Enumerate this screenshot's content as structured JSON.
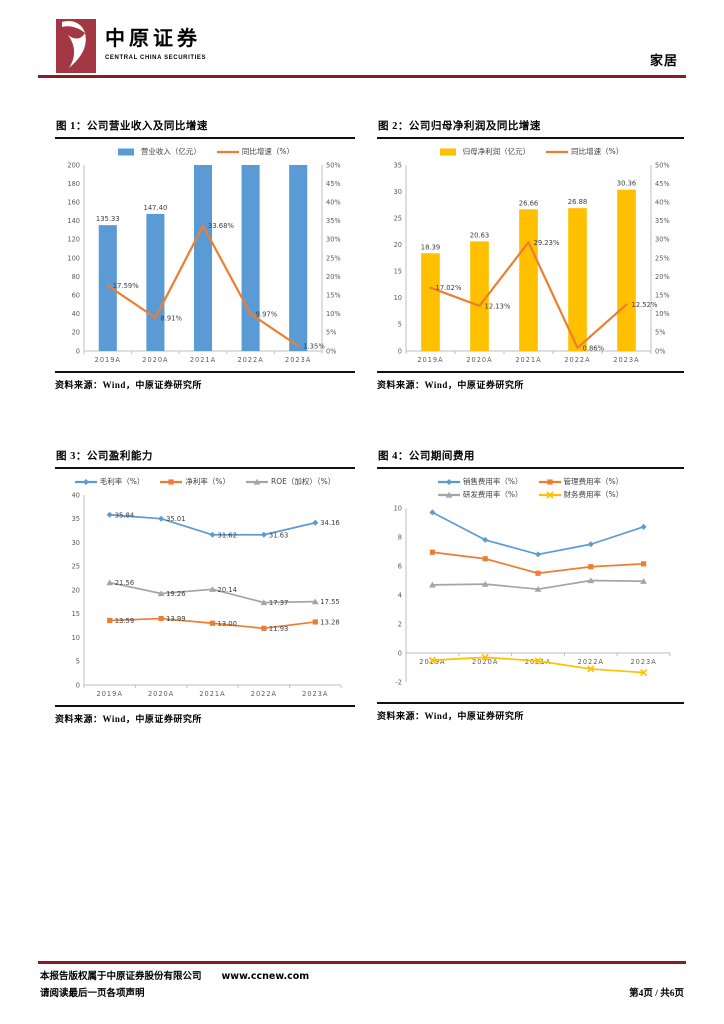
{
  "header": {
    "brand_cn": "中原证券",
    "brand_en": "CENTRAL CHINA SECURITIES",
    "sector_tag": "家居"
  },
  "footer": {
    "copyright": "本报告版权属于中原证券股份有限公司",
    "website": "www.ccnew.com",
    "disclaimer": "请阅读最后一页各项声明",
    "page_info": "第4页 / 共6页"
  },
  "colors": {
    "brand_red": "#A43744",
    "rule_red": "#8B1B21",
    "bar_blue": "#5B9BD5",
    "series_orange": "#ED7D31",
    "bar_gold": "#FFC000",
    "series_gray": "#A5A5A5",
    "series_yellow": "#FFC000"
  },
  "chart_data": [
    {
      "type": "bar",
      "title": "图 1：公司营业收入及同比增速",
      "source": "资料来源：Wind，中原证券研究所",
      "categories": [
        "2019A",
        "2020A",
        "2021A",
        "2022A",
        "2023A"
      ],
      "left_axis": {
        "min": 0,
        "max": 200,
        "step": 20
      },
      "right_axis": {
        "min": 0,
        "max": 50,
        "step": 5,
        "suffix": "%"
      },
      "series": [
        {
          "name": "营业收入（亿元）",
          "type": "bar",
          "axis": "left",
          "color": "#5B9BD5",
          "values": [
            135.33,
            147.4,
            200,
            200,
            200
          ],
          "labels": [
            "135.33",
            "147.40",
            "",
            "",
            ""
          ]
        },
        {
          "name": "同比增速（%）",
          "type": "line",
          "axis": "right",
          "color": "#ED7D31",
          "width": 2.2,
          "values": [
            17.59,
            8.91,
            33.68,
            9.97,
            1.35
          ],
          "labels": [
            "17.59%",
            "8.91%",
            "33.68%",
            "9.97%",
            "1.35%"
          ]
        }
      ]
    },
    {
      "type": "bar",
      "title": "图 2：公司归母净利润及同比增速",
      "source": "资料来源：Wind，中原证券研究所",
      "categories": [
        "2019A",
        "2020A",
        "2021A",
        "2022A",
        "2023A"
      ],
      "left_axis": {
        "min": 0,
        "max": 35,
        "step": 5
      },
      "right_axis": {
        "min": 0,
        "max": 50,
        "step": 5,
        "suffix": "%"
      },
      "series": [
        {
          "name": "归母净利润（亿元）",
          "type": "bar",
          "axis": "left",
          "color": "#FFC000",
          "values": [
            18.39,
            20.63,
            26.66,
            26.88,
            30.36
          ],
          "labels": [
            "18.39",
            "20.63",
            "26.66",
            "26.88",
            "30.36"
          ]
        },
        {
          "name": "同比增速（%）",
          "type": "line",
          "axis": "right",
          "color": "#ED7D31",
          "width": 2.2,
          "values": [
            17.02,
            12.13,
            29.23,
            0.86,
            12.52
          ],
          "labels": [
            "17.02%",
            "12.13%",
            "29.23%",
            "0.86%",
            "12.52%"
          ]
        }
      ]
    },
    {
      "type": "line",
      "title": "图 3：公司盈利能力",
      "source": "资料来源：Wind，中原证券研究所",
      "categories": [
        "2019A",
        "2020A",
        "2021A",
        "2022A",
        "2023A"
      ],
      "left_axis": {
        "min": 0,
        "max": 40,
        "step": 5
      },
      "series": [
        {
          "name": "毛利率（%）",
          "type": "line",
          "axis": "left",
          "color": "#5B9BD5",
          "marker": "diamond",
          "width": 1.7,
          "values": [
            35.84,
            35.01,
            31.62,
            31.63,
            34.16
          ],
          "labels": [
            "35.84",
            "35.01",
            "31.62",
            "31.63",
            "34.16"
          ]
        },
        {
          "name": "净利率（%）",
          "type": "line",
          "axis": "left",
          "color": "#ED7D31",
          "marker": "square",
          "width": 1.7,
          "values": [
            13.59,
            13.99,
            13.0,
            11.93,
            13.28
          ],
          "labels": [
            "13.59",
            "13.99",
            "13.00",
            "11.93",
            "13.28"
          ]
        },
        {
          "name": "ROE（加权）（%）",
          "type": "line",
          "axis": "left",
          "color": "#A5A5A5",
          "marker": "triangle",
          "width": 1.7,
          "values": [
            21.56,
            19.26,
            20.14,
            17.37,
            17.55
          ],
          "labels": [
            "21.56",
            "19.26",
            "20.14",
            "17.37",
            "17.55"
          ]
        }
      ]
    },
    {
      "type": "line",
      "title": "图 4：公司期间费用",
      "source": "资料来源：Wind，中原证券研究所",
      "categories": [
        "2019A",
        "2020A",
        "2021A",
        "2022A",
        "2023A"
      ],
      "left_axis": {
        "min": -2,
        "max": 10,
        "step": 2
      },
      "legend_rows": [
        [
          0,
          1
        ],
        [
          2,
          3
        ]
      ],
      "series": [
        {
          "name": "销售费用率（%）",
          "type": "line",
          "axis": "left",
          "color": "#5B9BD5",
          "marker": "diamond",
          "width": 1.7,
          "values": [
            9.7,
            7.8,
            6.8,
            7.5,
            8.7
          ]
        },
        {
          "name": "管理费用率（%）",
          "type": "line",
          "axis": "left",
          "color": "#ED7D31",
          "marker": "square",
          "width": 1.7,
          "values": [
            6.95,
            6.5,
            5.5,
            5.95,
            6.15
          ]
        },
        {
          "name": "研发费用率（%）",
          "type": "line",
          "axis": "left",
          "color": "#A5A5A5",
          "marker": "triangle",
          "width": 1.7,
          "values": [
            4.7,
            4.75,
            4.4,
            5.0,
            4.95
          ]
        },
        {
          "name": "财务费用率（%）",
          "type": "line",
          "axis": "left",
          "color": "#FFC000",
          "marker": "x",
          "width": 1.7,
          "values": [
            -0.5,
            -0.3,
            -0.55,
            -1.1,
            -1.35
          ]
        }
      ]
    }
  ]
}
